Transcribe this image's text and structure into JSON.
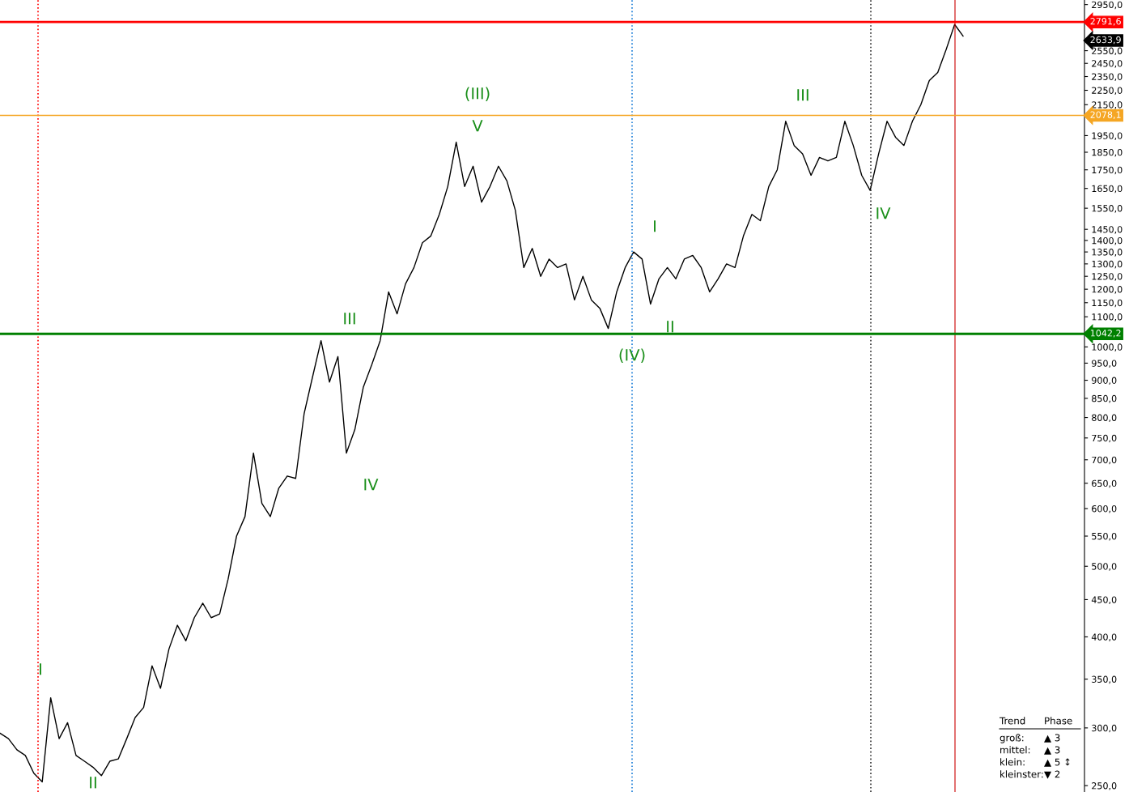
{
  "chart_data": {
    "type": "line",
    "log": "y",
    "grid": false,
    "tick_labels": "y",
    "marker": "none",
    "line_style": "solid",
    "ylim": [
      245,
      2993
    ],
    "yticks": [
      {
        "value": 250,
        "label": "250,0"
      },
      {
        "value": 300,
        "label": "300,0"
      },
      {
        "value": 350,
        "label": "350,0"
      },
      {
        "value": 400,
        "label": "400,0"
      },
      {
        "value": 450,
        "label": "450,0"
      },
      {
        "value": 500,
        "label": "500,0"
      },
      {
        "value": 550,
        "label": "550,0"
      },
      {
        "value": 600,
        "label": "600,0"
      },
      {
        "value": 650,
        "label": "650,0"
      },
      {
        "value": 700,
        "label": "700,0"
      },
      {
        "value": 750,
        "label": "750,0"
      },
      {
        "value": 800,
        "label": "800,0"
      },
      {
        "value": 850,
        "label": "850,0"
      },
      {
        "value": 900,
        "label": "900,0"
      },
      {
        "value": 950,
        "label": "950,0"
      },
      {
        "value": 1000,
        "label": "1000,0"
      },
      {
        "value": 1100,
        "label": "1100,0"
      },
      {
        "value": 1150,
        "label": "1150,0"
      },
      {
        "value": 1200,
        "label": "1200,0"
      },
      {
        "value": 1250,
        "label": "1250,0"
      },
      {
        "value": 1300,
        "label": "1300,0"
      },
      {
        "value": 1350,
        "label": "1350,0"
      },
      {
        "value": 1400,
        "label": "1400,0"
      },
      {
        "value": 1450,
        "label": "1450,0"
      },
      {
        "value": 1550,
        "label": "1550,0"
      },
      {
        "value": 1650,
        "label": "1650,0"
      },
      {
        "value": 1750,
        "label": "1750,0"
      },
      {
        "value": 1850,
        "label": "1850,0"
      },
      {
        "value": 1950,
        "label": "1950,0"
      },
      {
        "value": 2150,
        "label": "2150,0"
      },
      {
        "value": 2250,
        "label": "2250,0"
      },
      {
        "value": 2350,
        "label": "2350,0"
      },
      {
        "value": 2450,
        "label": "2450,0"
      },
      {
        "value": 2550,
        "label": "2550,0"
      },
      {
        "value": 2950,
        "label": "2950,0"
      }
    ],
    "categories": [
      null,
      null,
      null,
      null,
      null,
      null,
      null,
      null,
      null,
      null,
      null,
      null,
      null,
      null,
      null,
      null,
      null,
      null,
      null,
      null,
      null,
      null,
      null,
      null,
      null,
      null,
      null,
      null,
      null,
      null,
      null,
      null,
      null,
      null,
      null,
      null,
      null,
      null,
      null,
      null,
      null,
      null,
      null,
      null,
      null,
      null,
      null,
      null,
      null,
      null,
      null,
      null,
      null,
      null,
      null,
      null,
      null,
      null,
      null,
      null,
      null,
      null,
      null,
      null,
      null,
      null,
      null,
      null,
      null,
      null,
      null,
      null,
      null,
      null,
      null,
      null,
      null,
      null,
      null,
      null,
      null,
      null,
      null,
      null,
      null,
      null,
      null,
      null,
      null,
      null,
      null,
      null,
      null,
      null,
      null,
      null,
      null,
      null,
      null,
      null,
      null,
      null,
      null,
      null,
      null,
      null,
      null,
      null,
      null,
      null,
      null,
      null,
      null,
      null,
      null
    ],
    "series": [
      {
        "color": "#000000",
        "values": [
          295,
          290,
          280,
          275,
          260,
          253,
          330,
          290,
          305,
          275,
          270,
          265,
          258,
          270,
          272,
          290,
          310,
          320,
          365,
          340,
          385,
          415,
          395,
          425,
          445,
          425,
          430,
          480,
          550,
          585,
          715,
          610,
          585,
          640,
          665,
          660,
          810,
          910,
          1020,
          895,
          970,
          715,
          770,
          880,
          945,
          1020,
          1190,
          1110,
          1220,
          1285,
          1390,
          1420,
          1520,
          1660,
          1910,
          1660,
          1770,
          1580,
          1660,
          1770,
          1690,
          1540,
          1285,
          1365,
          1250,
          1320,
          1285,
          1300,
          1160,
          1250,
          1160,
          1130,
          1060,
          1190,
          1285,
          1350,
          1320,
          1145,
          1240,
          1285,
          1240,
          1320,
          1335,
          1285,
          1190,
          1240,
          1300,
          1285,
          1420,
          1520,
          1490,
          1660,
          1750,
          2040,
          1890,
          1840,
          1720,
          1820,
          1800,
          1820,
          2040,
          1890,
          1720,
          1640,
          1840,
          2040,
          1940,
          1890,
          2040,
          2150,
          2320,
          2380,
          2560,
          2770,
          2670
        ]
      }
    ],
    "ref_lines": [
      {
        "axis": "y",
        "value": 2791.6,
        "label": "2791,6",
        "color": "#ff0000",
        "line_style": "solid"
      },
      {
        "axis": "y",
        "value": 2078.1,
        "label": "2078,1",
        "color": "#f5a623",
        "line_style": "solid"
      },
      {
        "axis": "y",
        "value": 1042.2,
        "label": "1042,2",
        "color": "#008000",
        "line_style": "solid"
      }
    ],
    "annotations": [
      "I",
      "II",
      "III",
      "IV",
      "(III)",
      "V",
      "(IV)",
      "I",
      "II",
      "III",
      "IV",
      "2633,9",
      "Trend",
      "Phase",
      "groß:",
      "▲ 3",
      "mittel:",
      "▲ 3",
      "klein:",
      "▲ 5 ↕",
      "kleinster:",
      "▼ 2"
    ]
  }
}
